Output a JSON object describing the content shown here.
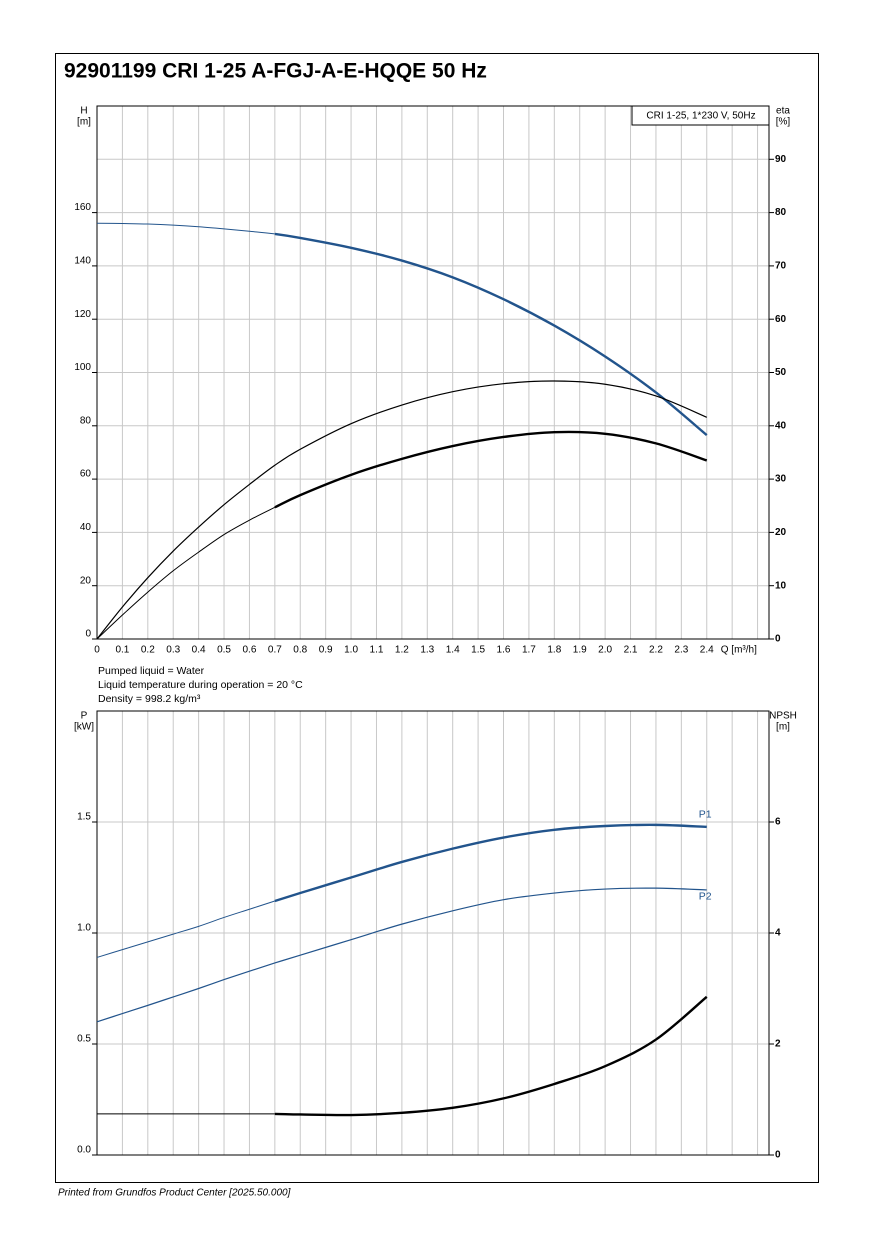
{
  "title": "92901199 CRI 1-25 A-FGJ-A-E-HQQE 50 Hz",
  "info": [
    "Pumped liquid = Water",
    "Liquid temperature during operation = 20 °C",
    "Density = 998.2 kg/m³"
  ],
  "footer": "Printed from Grundfos Product Center [2025.50.000]",
  "chart_data": [
    {
      "type": "line",
      "annotation": "CRI 1-25, 1*230 V, 50Hz",
      "legend_corner": "top-right",
      "ylabel": "H",
      "yunit": "[m]",
      "y2label": "eta",
      "y2unit": "[%]",
      "xlabel": "Q [m³/h]",
      "xlim": [
        0,
        2.645
      ],
      "ylim": [
        0,
        200
      ],
      "y2lim": [
        0,
        100
      ],
      "xticks": [
        0,
        0.1,
        0.2,
        0.3,
        0.4,
        0.5,
        0.6,
        0.7,
        0.8,
        0.9,
        {
          "value": 1,
          "label": "1.0"
        },
        1.1,
        1.2,
        1.3,
        1.4,
        1.5,
        1.6,
        1.7,
        1.8,
        1.9,
        {
          "value": 2,
          "label": "2.0"
        },
        2.1,
        2.2,
        2.3,
        2.4
      ],
      "xgrid_extra": [
        2.5,
        2.6
      ],
      "yticks": [
        0,
        20,
        40,
        60,
        80,
        100,
        120,
        140,
        160
      ],
      "y2ticks": [
        0,
        10,
        20,
        30,
        40,
        50,
        60,
        70,
        80,
        90
      ],
      "grid": true,
      "x": [
        0,
        0.1,
        0.2,
        0.3,
        0.4,
        0.5,
        0.6,
        0.7,
        0.8,
        1.0,
        1.2,
        1.4,
        1.6,
        1.8,
        2.0,
        2.2,
        2.4
      ],
      "series": [
        {
          "color": "#22548c",
          "bold_from": 0.7,
          "values": [
            156,
            155.9,
            155.7,
            155.3,
            154.7,
            153.9,
            153,
            152,
            150.5,
            146.8,
            142,
            135.7,
            127.5,
            117.6,
            106,
            92.5,
            76.5
          ]
        },
        {
          "color": "#000000",
          "axis": "y2",
          "values": [
            0,
            6,
            11.5,
            16.5,
            21,
            25.2,
            29,
            32.6,
            35.6,
            40.4,
            43.9,
            46.4,
            47.9,
            48.4,
            47.8,
            45.6,
            41.6
          ]
        },
        {
          "color": "#000000",
          "axis": "y2",
          "bold_from": 0.7,
          "values": [
            0,
            4.5,
            8.8,
            12.8,
            16.3,
            19.6,
            22.3,
            24.7,
            27,
            30.8,
            33.8,
            36.2,
            37.9,
            38.8,
            38.5,
            36.7,
            33.5
          ]
        }
      ]
    },
    {
      "type": "line",
      "ylabel": "P",
      "yunit": "[kW]",
      "y2label": "NPSH",
      "y2unit": "[m]",
      "xlim": [
        0,
        2.645
      ],
      "ylim": [
        0,
        2
      ],
      "y2lim": [
        0,
        8
      ],
      "xgrid": [
        0,
        0.1,
        0.2,
        0.3,
        0.4,
        0.5,
        0.6,
        0.7,
        0.8,
        0.9,
        1,
        1.1,
        1.2,
        1.3,
        1.4,
        1.5,
        1.6,
        1.7,
        1.8,
        1.9,
        2,
        2.1,
        2.2,
        2.3,
        2.4,
        2.5,
        2.6
      ],
      "yticks": [
        {
          "value": 0,
          "label": "0.0"
        },
        0.5,
        {
          "value": 1,
          "label": "1.0"
        },
        1.5
      ],
      "y2ticks": [
        0,
        2,
        4,
        6
      ],
      "grid": true,
      "x": [
        0,
        0.1,
        0.2,
        0.3,
        0.4,
        0.5,
        0.6,
        0.7,
        0.8,
        1.0,
        1.2,
        1.4,
        1.6,
        1.8,
        2.0,
        2.2,
        2.4
      ],
      "series": [
        {
          "name": "P1",
          "color": "#22548c",
          "bold_from": 0.7,
          "values": [
            0.89,
            0.925,
            0.96,
            0.995,
            1.03,
            1.07,
            1.107,
            1.144,
            1.18,
            1.25,
            1.32,
            1.38,
            1.43,
            1.465,
            1.482,
            1.487,
            1.478
          ]
        },
        {
          "name": "P2",
          "color": "#22548c",
          "values": [
            0.6,
            0.637,
            0.674,
            0.712,
            0.75,
            0.79,
            0.828,
            0.865,
            0.9,
            0.97,
            1.04,
            1.1,
            1.15,
            1.18,
            1.198,
            1.202,
            1.194
          ]
        },
        {
          "color": "#000000",
          "axis": "y2",
          "bold_from": 0.7,
          "values": [
            0.74,
            0.74,
            0.74,
            0.74,
            0.74,
            0.74,
            0.74,
            0.74,
            0.73,
            0.72,
            0.76,
            0.85,
            1.02,
            1.28,
            1.6,
            2.08,
            2.85
          ]
        }
      ]
    }
  ]
}
